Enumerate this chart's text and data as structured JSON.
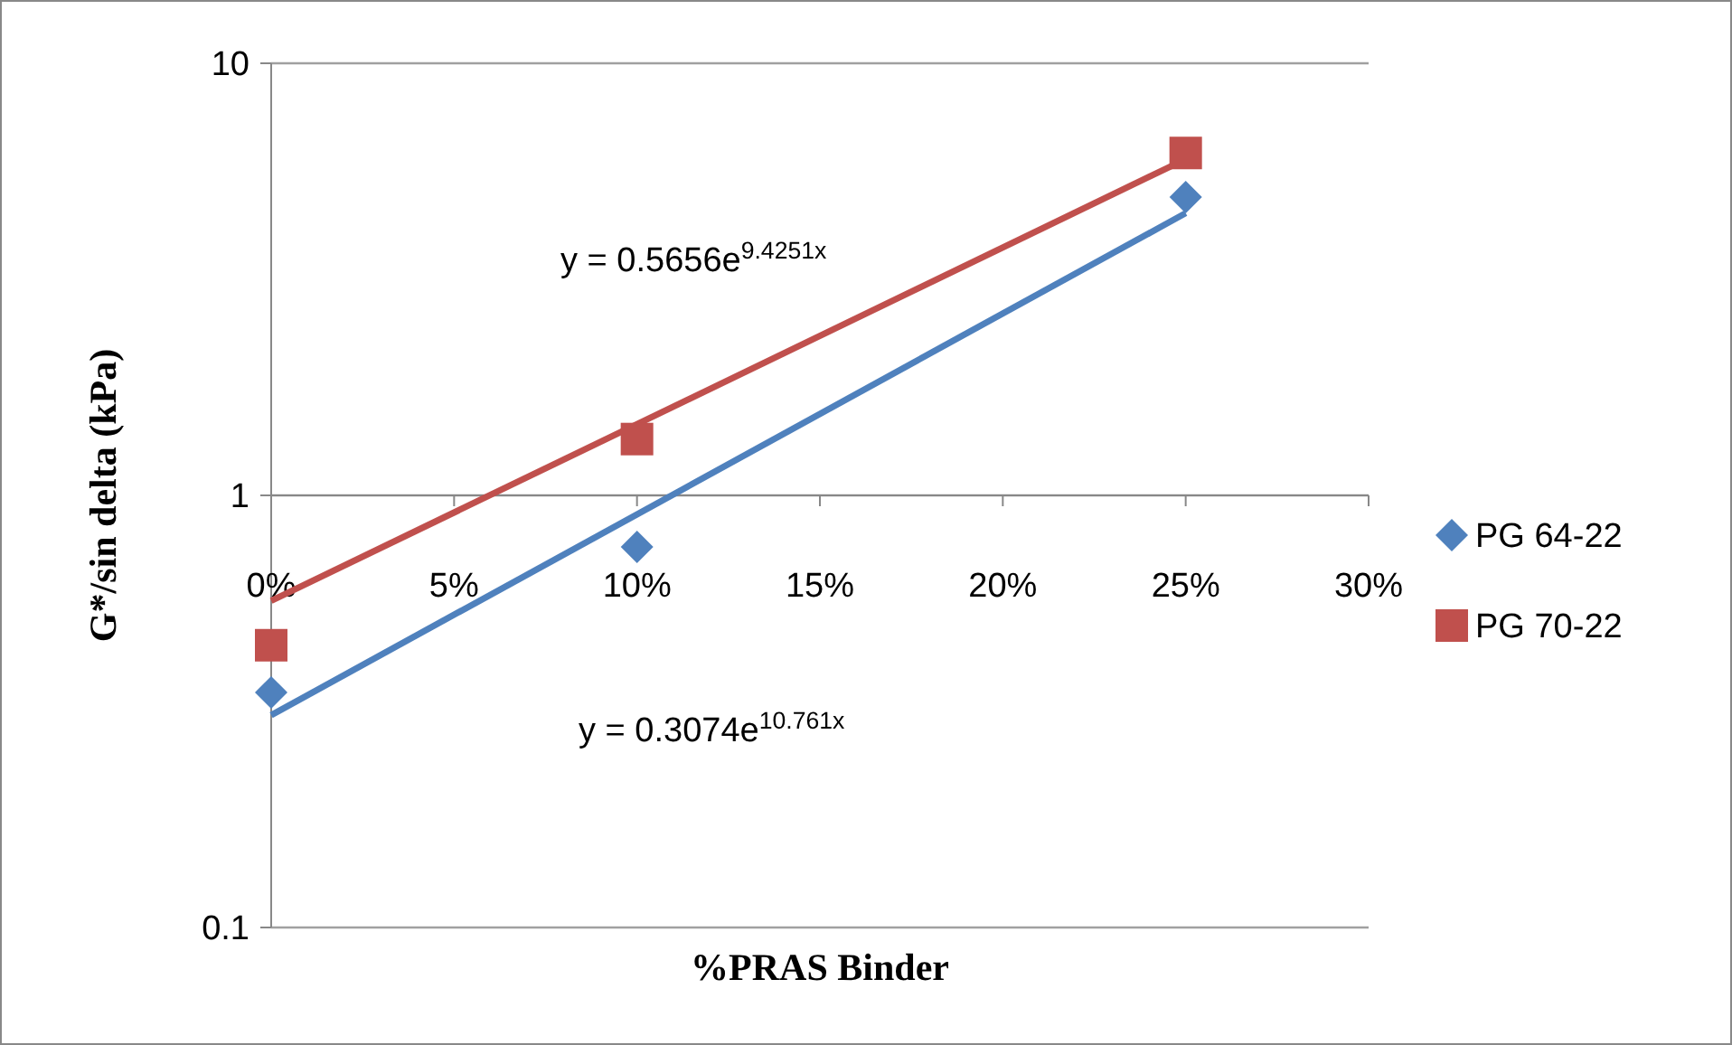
{
  "chart_data": {
    "type": "scatter",
    "xlabel": "%PRAS Binder",
    "ylabel": "G*/sin delta (kPa)",
    "log": "y",
    "grid": "y",
    "legend": "right",
    "xlim": [
      0,
      0.3
    ],
    "xticks": [
      {
        "value": 0,
        "label": "0%"
      },
      {
        "value": 0.05,
        "label": "5%"
      },
      {
        "value": 0.1,
        "label": "10%"
      },
      {
        "value": 0.15,
        "label": "15%"
      },
      {
        "value": 0.2,
        "label": "20%"
      },
      {
        "value": 0.25,
        "label": "25%"
      },
      {
        "value": 0.3,
        "label": "30%"
      }
    ],
    "ylim": [
      0.1,
      10
    ],
    "yticks": [
      0.1,
      1,
      10
    ],
    "series": [
      {
        "name": "PG 64-22",
        "marker": "diamond",
        "color": "#4f81bd",
        "x": [
          0,
          0.1,
          0.25
        ],
        "values": [
          0.35,
          0.76,
          4.9
        ]
      },
      {
        "name": "PG 70-22",
        "marker": "square",
        "color": "#c0504d",
        "x": [
          0,
          0.1,
          0.25
        ],
        "values": [
          0.45,
          1.35,
          6.2
        ]
      },
      {
        "type": "line",
        "marker": "none",
        "color": "#4f81bd",
        "x": [
          0,
          0.25
        ],
        "values": [
          0.31,
          4.5
        ]
      },
      {
        "type": "line",
        "marker": "none",
        "color": "#c0504d",
        "x": [
          0,
          0.25
        ],
        "values": [
          0.57,
          6.0
        ]
      }
    ],
    "annotations": [
      "y = 0.5656e$^{9.4251x}$",
      "y = 0.3074e$^{10.761x}$"
    ]
  }
}
